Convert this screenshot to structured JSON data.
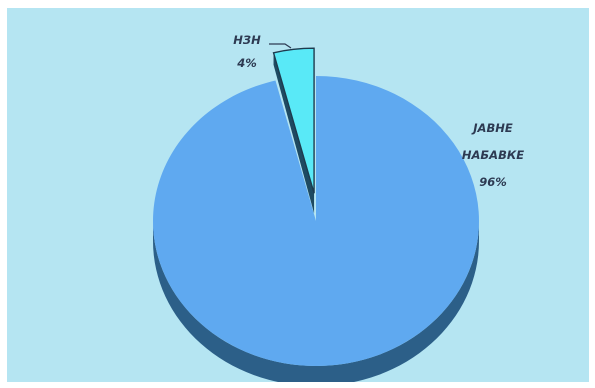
{
  "chart_data": {
    "type": "pie",
    "style": "3d-exploded",
    "title": "",
    "slices": [
      {
        "label": "НЗН",
        "percent_label": "4%",
        "value": 4,
        "color": "#59e9f7",
        "exploded": true
      },
      {
        "label": "ЈАВНЕ НАБАВКЕ",
        "label_lines": [
          "ЈАВНЕ",
          "НАБАВКЕ"
        ],
        "percent_label": "96%",
        "value": 96,
        "color": "#5fa9f0",
        "exploded": false
      }
    ],
    "legend": "none",
    "background_color": "#b5e5f2",
    "side_color": "#2c5f88"
  }
}
